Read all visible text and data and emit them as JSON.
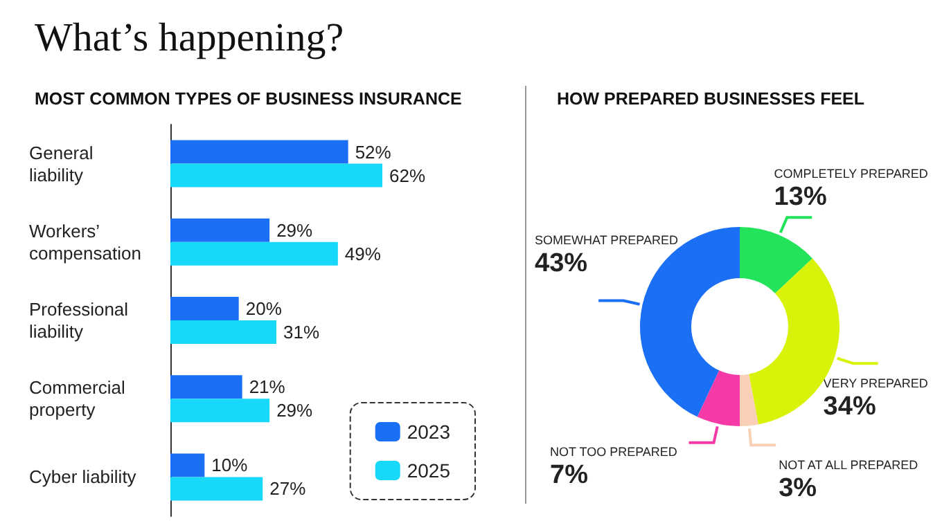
{
  "chart_data": [
    {
      "type": "bar",
      "orientation": "horizontal",
      "title": "What’s happening?",
      "subtitle": "MOST COMMON TYPES OF BUSINESS INSURANCE",
      "categories": [
        "General liability",
        "Workers’ compensation",
        "Professional liability",
        "Commercial property",
        "Cyber liability"
      ],
      "tick_labels": "y",
      "legend": "bottom right",
      "series": [
        {
          "name": "2023",
          "color": "#1a6ff5",
          "values": [
            52,
            29,
            20,
            21,
            10
          ],
          "value_labels": [
            "52%",
            "29%",
            "20%",
            "21%",
            "10%"
          ]
        },
        {
          "name": "2025",
          "color": "#18d8fa",
          "values": [
            62,
            49,
            31,
            29,
            27
          ],
          "value_labels": [
            "62%",
            "49%",
            "31%",
            "29%",
            "27%"
          ]
        }
      ]
    },
    {
      "type": "donut",
      "title": "HOW PREPARED BUSINESSES FEEL",
      "categories": [
        "COMPLETELY PREPARED",
        "VERY PREPARED",
        "NOT AT ALL PREPARED",
        "NOT TOO PREPARED",
        "SOMEWHAT PREPARED"
      ],
      "values": [
        13,
        34,
        3,
        7,
        43
      ],
      "value_labels": [
        "13%",
        "34%",
        "3%",
        "7%",
        "43%"
      ],
      "colors": [
        "#22e35a",
        "#d9f20a",
        "#f9cfb5",
        "#f53aa8",
        "#1a6ff5"
      ],
      "legend": false
    }
  ]
}
